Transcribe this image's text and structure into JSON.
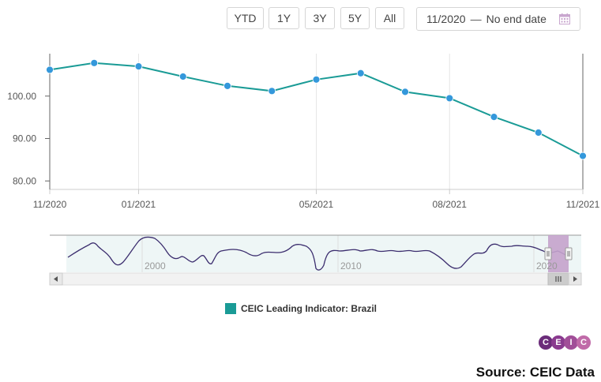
{
  "range_buttons": [
    "YTD",
    "1Y",
    "3Y",
    "5Y",
    "All"
  ],
  "date_range": {
    "start": "11/2020",
    "separator": "—",
    "end": "No end date"
  },
  "icons": {
    "calendar": "calendar-icon",
    "scroll_left": "arrow-left-icon",
    "scroll_right": "arrow-right-icon",
    "scroll_grip": "grip-icon"
  },
  "colors": {
    "series": "#1a9b96",
    "marker": "#3498db",
    "navigator_line": "#3b2d6e",
    "navigator_selection": "#c4a3cc"
  },
  "chart_data": {
    "type": "line",
    "x": [
      "11/2020",
      "12/2020",
      "01/2021",
      "02/2021",
      "03/2021",
      "04/2021",
      "05/2021",
      "06/2021",
      "07/2021",
      "08/2021",
      "09/2021",
      "10/2021",
      "11/2021"
    ],
    "series": [
      {
        "name": "CEIC Leading Indicator: Brazil",
        "values": [
          106.2,
          107.8,
          107.0,
          104.6,
          102.4,
          101.2,
          103.9,
          105.4,
          101.0,
          99.5,
          95.1,
          91.4,
          85.9
        ]
      }
    ],
    "x_tick_labels": [
      "11/2020",
      "01/2021",
      "05/2021",
      "08/2021",
      "11/2021"
    ],
    "y_tick_labels": [
      "80.00",
      "90.00",
      "100.00"
    ],
    "ylim": [
      78,
      110
    ],
    "title": "",
    "xlabel": "",
    "ylabel": "",
    "legend_position": "bottom-center",
    "grid": "vertical",
    "navigator": {
      "labels": [
        "2000",
        "2010",
        "2020"
      ],
      "series_shape": "long-term history of the leading indicator with selected range highlighted at the right end"
    }
  },
  "legend": {
    "label": "CEIC Leading Indicator: Brazil"
  },
  "logo": {
    "letters": [
      "C",
      "E",
      "I",
      "C"
    ]
  },
  "source": "Source: CEIC Data"
}
